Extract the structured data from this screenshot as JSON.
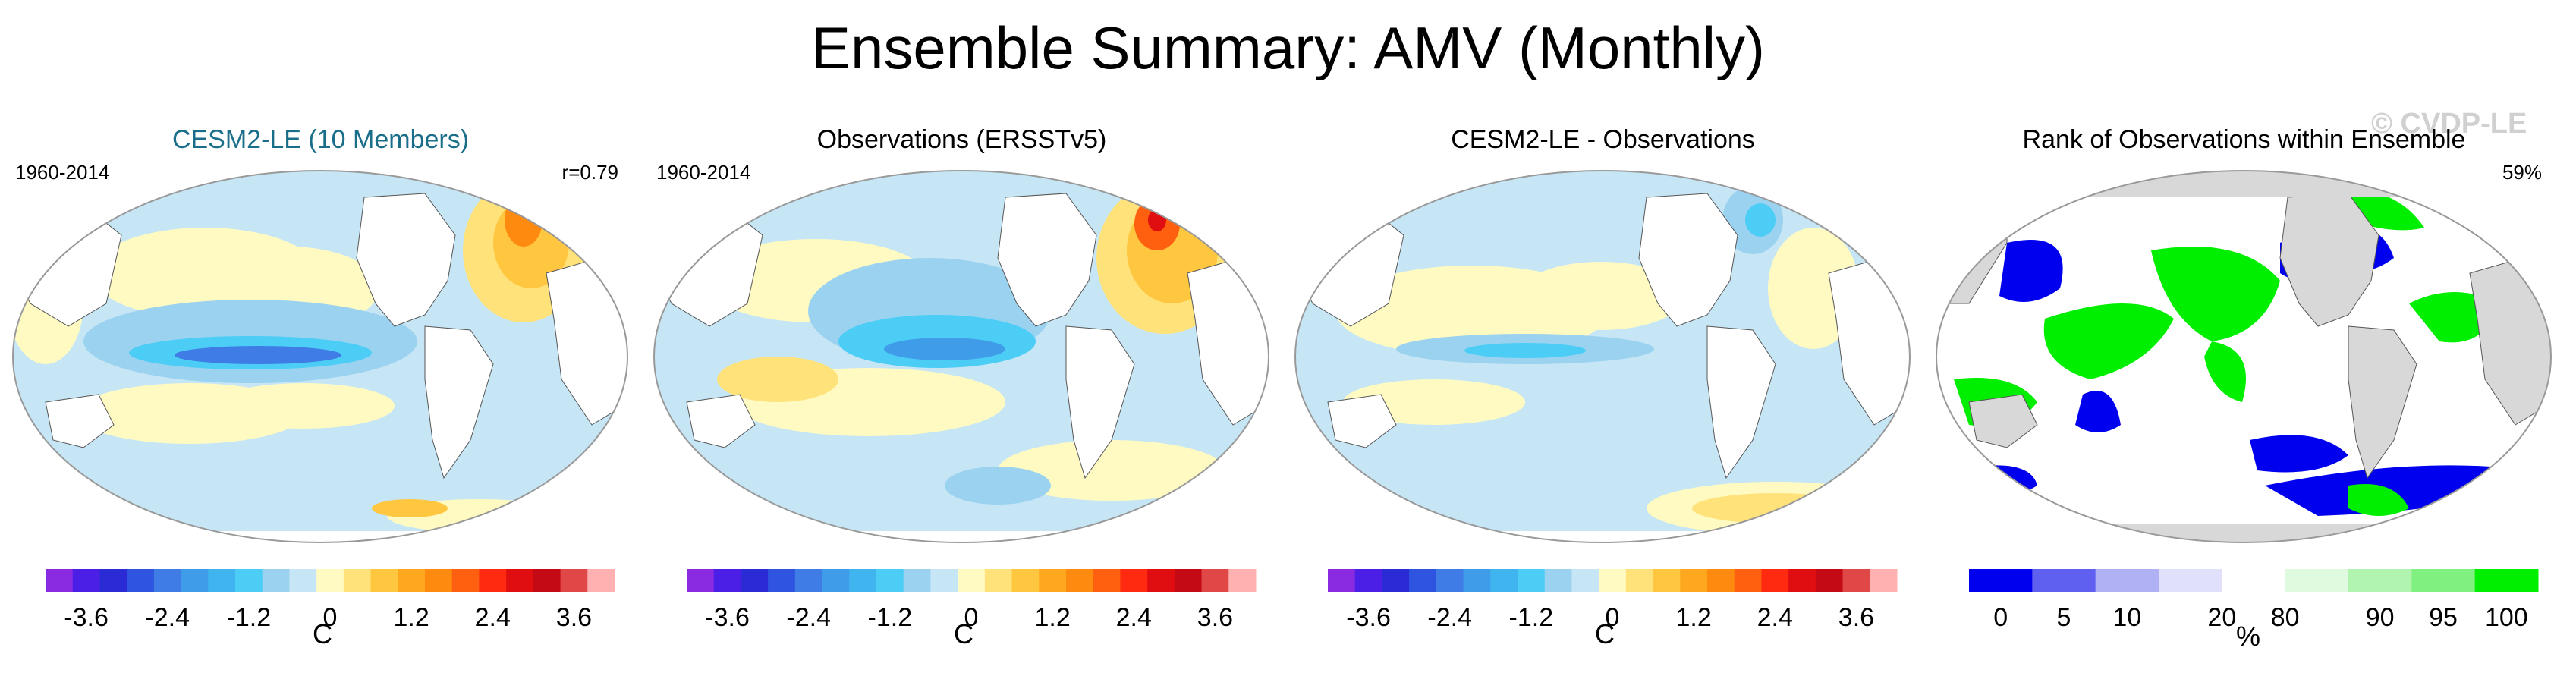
{
  "title": "Ensemble Summary: AMV (Monthly)",
  "watermark": "© CVDP-LE",
  "colors": {
    "diverging": [
      "#8a2be2",
      "#4b1fe6",
      "#2b2bd6",
      "#2f55e0",
      "#3f7ce6",
      "#3f9ce8",
      "#3fb4ee",
      "#4ccdf5",
      "#9ad2f0",
      "#c6e6f6",
      "#fffac2",
      "#ffe27a",
      "#ffc63f",
      "#ffa81f",
      "#ff8a10",
      "#ff6010",
      "#ff2a10",
      "#e00e10",
      "#c40a14",
      "#e04848",
      "#ffb0b0"
    ],
    "rank": [
      "#0000ee",
      "#6060f0",
      "#b0b0f4",
      "#e0e0fa",
      "#ffffff",
      "#e0fae0",
      "#b0f4b0",
      "#80f080",
      "#00ee00"
    ],
    "land": "#ffffff",
    "land_rank": "#d8d8d8",
    "ocean_light_blue": "#c6e6f6",
    "yellow": "#fff2a0",
    "orange": "#ffb040",
    "blue": "#4aa8ee",
    "green": "#00ee00",
    "darkblue": "#0000ee"
  },
  "panels": [
    {
      "id": "cesm",
      "title": "CESM2-LE (10 Members)",
      "left_label": "1960-2014",
      "right_label": "r=0.79",
      "unit": "C"
    },
    {
      "id": "obs",
      "title": "Observations (ERSSTv5)",
      "left_label": "1960-2014",
      "right_label": "",
      "unit": "C"
    },
    {
      "id": "diff",
      "title": "CESM2-LE - Observations",
      "left_label": "",
      "right_label": "",
      "unit": "C"
    },
    {
      "id": "rank",
      "title": "Rank of Observations within Ensemble",
      "left_label": "",
      "right_label": "59%",
      "unit": "%"
    }
  ],
  "chart_data": [
    {
      "type": "heatmap",
      "title": "CESM2-LE (10 Members)",
      "colorbar": {
        "levels": [
          -4.2,
          -3.8,
          -3.4,
          -3.0,
          -2.6,
          -2.2,
          -1.8,
          -1.4,
          -1.0,
          -0.6,
          -0.2,
          0.2,
          0.6,
          1.0,
          1.4,
          1.8,
          2.2,
          2.6,
          3.0,
          3.4,
          3.8,
          4.2
        ],
        "tick_labels": [
          "-3.6",
          "-2.4",
          "-1.2",
          "0",
          "1.2",
          "2.4",
          "3.6"
        ],
        "tick_values": [
          -3.6,
          -2.4,
          -1.2,
          0,
          1.2,
          2.4,
          3.6
        ],
        "unit": "C"
      },
      "annotations": [
        "1960-2014",
        "r=0.79"
      ]
    },
    {
      "type": "heatmap",
      "title": "Observations (ERSSTv5)",
      "colorbar": {
        "levels": [
          -4.2,
          -3.8,
          -3.4,
          -3.0,
          -2.6,
          -2.2,
          -1.8,
          -1.4,
          -1.0,
          -0.6,
          -0.2,
          0.2,
          0.6,
          1.0,
          1.4,
          1.8,
          2.2,
          2.6,
          3.0,
          3.4,
          3.8,
          4.2
        ],
        "tick_labels": [
          "-3.6",
          "-2.4",
          "-1.2",
          "0",
          "1.2",
          "2.4",
          "3.6"
        ],
        "tick_values": [
          -3.6,
          -2.4,
          -1.2,
          0,
          1.2,
          2.4,
          3.6
        ],
        "unit": "C"
      },
      "annotations": [
        "1960-2014"
      ]
    },
    {
      "type": "heatmap",
      "title": "CESM2-LE - Observations",
      "colorbar": {
        "levels": [
          -4.2,
          -3.8,
          -3.4,
          -3.0,
          -2.6,
          -2.2,
          -1.8,
          -1.4,
          -1.0,
          -0.6,
          -0.2,
          0.2,
          0.6,
          1.0,
          1.4,
          1.8,
          2.2,
          2.6,
          3.0,
          3.4,
          3.8,
          4.2
        ],
        "tick_labels": [
          "-3.6",
          "-2.4",
          "-1.2",
          "0",
          "1.2",
          "2.4",
          "3.6"
        ],
        "tick_values": [
          -3.6,
          -2.4,
          -1.2,
          0,
          1.2,
          2.4,
          3.6
        ],
        "unit": "C"
      },
      "annotations": []
    },
    {
      "type": "heatmap",
      "title": "Rank of Observations within Ensemble",
      "colorbar": {
        "bins": 9,
        "tick_labels": [
          "0",
          "5",
          "10",
          "20",
          "80",
          "90",
          "95",
          "100"
        ],
        "tick_bin_index": [
          0.5,
          1.5,
          2.5,
          4,
          5,
          6.5,
          7.5,
          8.5
        ],
        "unit": "%"
      },
      "annotations": [
        "59%"
      ]
    }
  ]
}
